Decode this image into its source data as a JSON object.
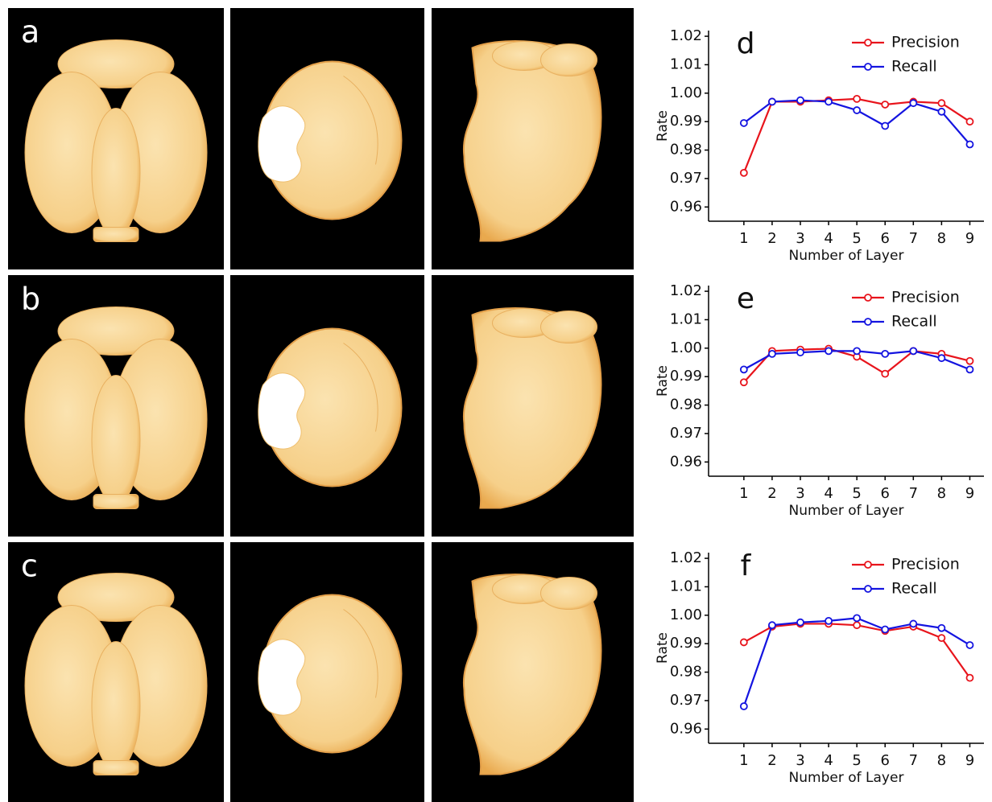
{
  "panels": {
    "labels": [
      "a",
      "b",
      "c"
    ]
  },
  "chart_data": [
    {
      "type": "line",
      "label": "d",
      "xlabel": "Number of Layer",
      "ylabel": "Rate",
      "x": [
        1,
        2,
        3,
        4,
        5,
        6,
        7,
        8,
        9
      ],
      "series": [
        {
          "name": "Precision",
          "color": "#e8141c",
          "values": [
            0.972,
            0.997,
            0.997,
            0.9975,
            0.998,
            0.996,
            0.997,
            0.9965,
            0.99
          ]
        },
        {
          "name": "Recall",
          "color": "#1414e0",
          "values": [
            0.9895,
            0.997,
            0.9975,
            0.997,
            0.994,
            0.9885,
            0.9965,
            0.9935,
            0.982
          ]
        }
      ],
      "xlim": [
        -0.25,
        9.5
      ],
      "xticks": [
        1,
        2,
        3,
        4,
        5,
        6,
        7,
        8,
        9
      ],
      "ylim": [
        0.955,
        1.022
      ],
      "yticks": [
        0.96,
        0.97,
        0.98,
        0.99,
        {
          "value": 1,
          "label": "1.00"
        },
        1.01,
        1.02
      ],
      "legend": "upper right"
    },
    {
      "type": "line",
      "label": "e",
      "xlabel": "Number of Layer",
      "ylabel": "Rate",
      "x": [
        1,
        2,
        3,
        4,
        5,
        6,
        7,
        8,
        9
      ],
      "series": [
        {
          "name": "Precision",
          "color": "#e8141c",
          "values": [
            0.988,
            0.999,
            0.9995,
            0.9998,
            0.997,
            0.991,
            0.999,
            0.998,
            0.9955
          ]
        },
        {
          "name": "Recall",
          "color": "#1414e0",
          "values": [
            0.9925,
            0.998,
            0.9985,
            0.999,
            0.999,
            0.998,
            0.999,
            0.9965,
            0.9925
          ]
        }
      ],
      "xlim": [
        -0.25,
        9.5
      ],
      "xticks": [
        1,
        2,
        3,
        4,
        5,
        6,
        7,
        8,
        9
      ],
      "ylim": [
        0.955,
        1.022
      ],
      "yticks": [
        0.96,
        0.97,
        0.98,
        0.99,
        {
          "value": 1,
          "label": "1.00"
        },
        1.01,
        1.02
      ],
      "legend": "upper right"
    },
    {
      "type": "line",
      "label": "f",
      "xlabel": "Number of Layer",
      "ylabel": "Rate",
      "x": [
        1,
        2,
        3,
        4,
        5,
        6,
        7,
        8,
        9
      ],
      "series": [
        {
          "name": "Precision",
          "color": "#e8141c",
          "values": [
            0.9905,
            0.996,
            0.997,
            0.997,
            0.9965,
            0.9945,
            0.996,
            0.992,
            0.978
          ]
        },
        {
          "name": "Recall",
          "color": "#1414e0",
          "values": [
            0.968,
            0.9965,
            0.9975,
            0.998,
            0.999,
            0.995,
            0.997,
            0.9955,
            0.9895
          ]
        }
      ],
      "xlim": [
        -0.25,
        9.5
      ],
      "xticks": [
        1,
        2,
        3,
        4,
        5,
        6,
        7,
        8,
        9
      ],
      "ylim": [
        0.955,
        1.022
      ],
      "yticks": [
        0.96,
        0.97,
        0.98,
        0.99,
        {
          "value": 1,
          "label": "1.00"
        },
        1.01,
        1.02
      ],
      "legend": "upper right"
    }
  ]
}
